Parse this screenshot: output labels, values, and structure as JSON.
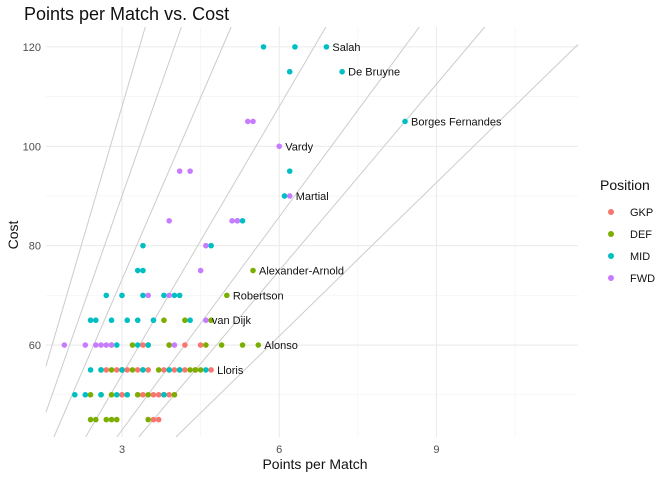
{
  "chart_data": {
    "type": "scatter",
    "title": "Points per Match vs. Cost",
    "xlabel": "Points per Match",
    "ylabel": "Cost",
    "xlim": [
      1.55,
      11.7
    ],
    "ylim": [
      41.5,
      124
    ],
    "x_ticks": [
      3,
      6,
      9
    ],
    "x_minor_ticks": [
      4.5,
      7.5,
      10.5
    ],
    "y_ticks": [
      60,
      80,
      100,
      120
    ],
    "y_minor_ticks": [
      50,
      70,
      90,
      110
    ],
    "grid": true,
    "legend": {
      "title": "Position",
      "placement": "right",
      "entries": [
        {
          "name": "GKP",
          "color": "#F8766D"
        },
        {
          "name": "DEF",
          "color": "#7CAE00"
        },
        {
          "name": "MID",
          "color": "#00BFC4"
        },
        {
          "name": "FWD",
          "color": "#C77CFF"
        }
      ]
    },
    "reference_line_slopes": [
      36.0,
      30.0,
      24.4,
      18.0,
      14.3,
      12.5,
      10.3
    ],
    "series": [
      {
        "name": "GKP",
        "color": "#F8766D",
        "points": [
          [
            4.7,
            55
          ],
          [
            4.4,
            55
          ],
          [
            3.4,
            50
          ],
          [
            3.6,
            50
          ],
          [
            3.9,
            50
          ],
          [
            4.0,
            50
          ],
          [
            3.3,
            50
          ],
          [
            3.7,
            45
          ],
          [
            3.6,
            45
          ],
          [
            3.8,
            55
          ],
          [
            3.5,
            55
          ],
          [
            3.3,
            55
          ],
          [
            3.1,
            55
          ],
          [
            3.0,
            55
          ],
          [
            2.9,
            55
          ],
          [
            2.7,
            55
          ],
          [
            4.0,
            55
          ],
          [
            4.2,
            55
          ],
          [
            3.7,
            50
          ],
          [
            3.0,
            50
          ],
          [
            4.2,
            60
          ],
          [
            4.5,
            60
          ],
          [
            3.9,
            60
          ],
          [
            3.4,
            60
          ]
        ]
      },
      {
        "name": "DEF",
        "color": "#7CAE00",
        "points": [
          [
            5.5,
            75
          ],
          [
            5.0,
            70
          ],
          [
            4.7,
            65
          ],
          [
            5.6,
            60
          ],
          [
            5.3,
            60
          ],
          [
            4.9,
            60
          ],
          [
            4.6,
            60
          ],
          [
            4.5,
            55
          ],
          [
            4.3,
            55
          ],
          [
            4.1,
            55
          ],
          [
            3.9,
            55
          ],
          [
            3.7,
            55
          ],
          [
            3.4,
            55
          ],
          [
            3.2,
            55
          ],
          [
            3.0,
            55
          ],
          [
            2.8,
            55
          ],
          [
            2.6,
            55
          ],
          [
            4.4,
            55
          ],
          [
            4.0,
            50
          ],
          [
            3.8,
            50
          ],
          [
            3.5,
            50
          ],
          [
            3.3,
            50
          ],
          [
            3.1,
            50
          ],
          [
            2.8,
            50
          ],
          [
            2.6,
            50
          ],
          [
            2.4,
            50
          ],
          [
            2.5,
            45
          ],
          [
            2.4,
            45
          ],
          [
            2.7,
            45
          ],
          [
            2.8,
            45
          ],
          [
            2.9,
            45
          ],
          [
            3.5,
            45
          ],
          [
            3.9,
            60
          ],
          [
            3.5,
            60
          ],
          [
            3.2,
            60
          ],
          [
            2.8,
            60
          ],
          [
            3.8,
            65
          ],
          [
            4.2,
            65
          ]
        ]
      },
      {
        "name": "MID",
        "color": "#00BFC4",
        "points": [
          [
            6.9,
            120
          ],
          [
            5.7,
            120
          ],
          [
            6.3,
            120
          ],
          [
            7.2,
            115
          ],
          [
            6.2,
            115
          ],
          [
            8.4,
            105
          ],
          [
            6.2,
            95
          ],
          [
            6.1,
            90
          ],
          [
            5.3,
            85
          ],
          [
            5.2,
            85
          ],
          [
            4.7,
            80
          ],
          [
            3.4,
            80
          ],
          [
            3.4,
            75
          ],
          [
            3.3,
            75
          ],
          [
            2.7,
            70
          ],
          [
            3.0,
            70
          ],
          [
            3.4,
            70
          ],
          [
            3.8,
            70
          ],
          [
            4.1,
            70
          ],
          [
            4.0,
            70
          ],
          [
            2.4,
            65
          ],
          [
            2.5,
            65
          ],
          [
            2.8,
            65
          ],
          [
            3.1,
            65
          ],
          [
            3.3,
            65
          ],
          [
            3.6,
            65
          ],
          [
            4.3,
            65
          ],
          [
            2.9,
            60
          ],
          [
            3.3,
            60
          ],
          [
            2.4,
            55
          ],
          [
            2.6,
            55
          ],
          [
            3.0,
            55
          ],
          [
            3.4,
            55
          ],
          [
            3.9,
            55
          ],
          [
            4.1,
            55
          ],
          [
            4.6,
            55
          ],
          [
            2.1,
            50
          ],
          [
            2.3,
            50
          ],
          [
            2.6,
            50
          ],
          [
            2.9,
            50
          ],
          [
            3.1,
            50
          ],
          [
            3.8,
            50
          ],
          [
            3.5,
            60
          ]
        ]
      },
      {
        "name": "FWD",
        "color": "#C77CFF",
        "points": [
          [
            5.4,
            105
          ],
          [
            5.5,
            105
          ],
          [
            6.0,
            100
          ],
          [
            6.2,
            90
          ],
          [
            4.1,
            95
          ],
          [
            4.3,
            95
          ],
          [
            3.9,
            85
          ],
          [
            5.1,
            85
          ],
          [
            5.2,
            85
          ],
          [
            4.6,
            80
          ],
          [
            4.5,
            75
          ],
          [
            3.5,
            70
          ],
          [
            3.9,
            70
          ],
          [
            4.6,
            65
          ],
          [
            4.0,
            60
          ],
          [
            1.9,
            60
          ],
          [
            2.3,
            60
          ],
          [
            2.5,
            60
          ],
          [
            2.6,
            60
          ],
          [
            2.8,
            60
          ],
          [
            2.7,
            60
          ]
        ]
      }
    ],
    "annotations": [
      {
        "label": "Salah",
        "x": 6.9,
        "y": 120
      },
      {
        "label": "De Bruyne",
        "x": 7.2,
        "y": 115
      },
      {
        "label": "Borges Fernandes",
        "x": 8.4,
        "y": 105
      },
      {
        "label": "Vardy",
        "x": 6.0,
        "y": 100
      },
      {
        "label": "Martial",
        "x": 6.2,
        "y": 90
      },
      {
        "label": "Alexander-Arnold",
        "x": 5.5,
        "y": 75
      },
      {
        "label": "Robertson",
        "x": 5.0,
        "y": 70
      },
      {
        "label": "van Dijk",
        "x": 4.6,
        "y": 65
      },
      {
        "label": "Alonso",
        "x": 5.6,
        "y": 60
      },
      {
        "label": "Lloris",
        "x": 4.7,
        "y": 55
      }
    ]
  }
}
